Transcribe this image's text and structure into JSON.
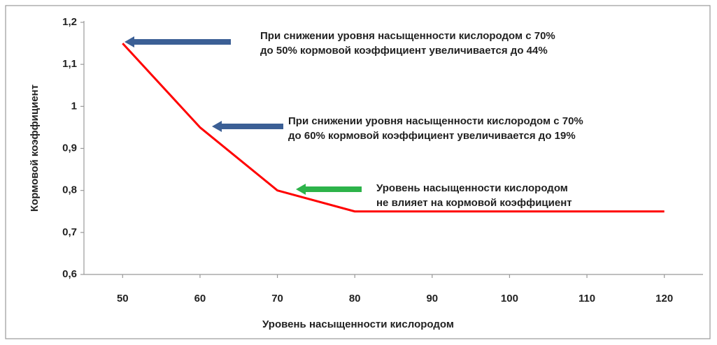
{
  "chart_data": {
    "type": "line",
    "x_label": "Уровень насыщенности кислородом",
    "y_label": "Кормовой коэффициент",
    "x": [
      50,
      60,
      70,
      80,
      90,
      100,
      110,
      120
    ],
    "values": [
      1.15,
      0.95,
      0.8,
      0.75,
      0.75,
      0.75,
      0.75,
      0.75
    ],
    "color": "#ff0000",
    "xlim": [
      45,
      125
    ],
    "xticks": [
      50,
      60,
      70,
      80,
      90,
      100,
      110,
      120
    ],
    "ylim": [
      0.6,
      1.2
    ],
    "yticks": [
      {
        "value": 0.6,
        "label": "0,6"
      },
      {
        "value": 0.7,
        "label": "0,7"
      },
      {
        "value": 0.8,
        "label": "0,8"
      },
      {
        "value": 0.9,
        "label": "0,9"
      },
      1,
      {
        "value": 1.1,
        "label": "1,1"
      },
      {
        "value": 1.2,
        "label": "1,2"
      }
    ],
    "grid": false,
    "annotations": [
      {
        "lines": [
          "При снижении уровня насыщенности кислородом с 70%",
          "до 50% кормовой коэффициент увеличивается до 44%"
        ],
        "arrow_color": "#3b5f95"
      },
      {
        "lines": [
          "При снижении уровня насыщенности кислородом с 70%",
          "до 60% кормовой коэффициент увеличивается до 19%"
        ],
        "arrow_color": "#3b5f95"
      },
      {
        "lines": [
          "Уровень насыщенности кислородом",
          "не влияет на кормовой коэффициент"
        ],
        "arrow_color": "#2db34a"
      }
    ]
  }
}
